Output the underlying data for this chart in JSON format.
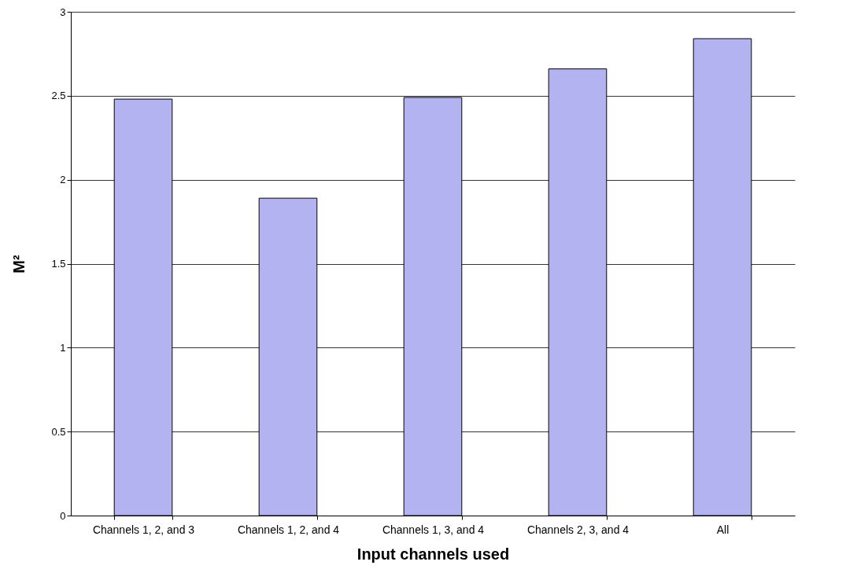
{
  "chart_data": {
    "type": "bar",
    "xlabel": "Input channels used",
    "ylabel": "M²",
    "categories": [
      "Channels 1, 2, and 3",
      "Channels 1, 2, and 4",
      "Channels 1, 3, and 4",
      "Channels 2, 3, and 4",
      "All"
    ],
    "values": [
      2.48,
      1.89,
      2.49,
      2.66,
      2.84
    ],
    "color": "#b3b3f2",
    "ylim": [
      0,
      3
    ],
    "yticks": [
      0,
      0.5,
      1,
      1.5,
      2,
      2.5,
      3
    ],
    "grid": "y"
  }
}
